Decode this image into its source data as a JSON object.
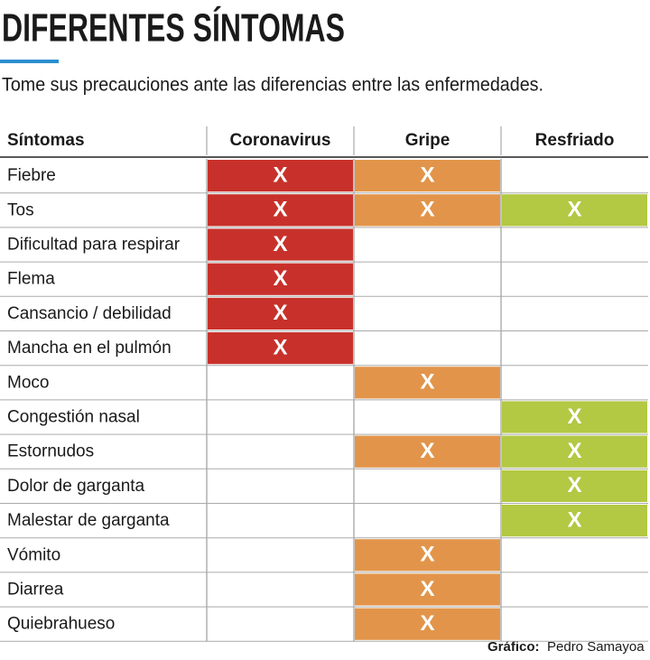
{
  "title": "DIFERENTES SÍNTOMAS",
  "subtitle": "Tome sus precauciones ante las diferencias entre las enfermedades.",
  "table": {
    "headers": [
      "Síntomas",
      "Coronavirus",
      "Gripe",
      "Resfriado"
    ],
    "colors": [
      "#c8312b",
      "#e2954a",
      "#b3c843"
    ],
    "rows": [
      [
        "Fiebre",
        "X",
        "X",
        null
      ],
      [
        "Tos",
        "X",
        "X",
        "X"
      ],
      [
        "Dificultad para respirar",
        "X",
        null,
        null
      ],
      [
        "Flema",
        "X",
        null,
        null
      ],
      [
        "Cansancio / debilidad",
        "X",
        null,
        null
      ],
      [
        "Mancha en el pulmón",
        "X",
        null,
        null
      ],
      [
        "Moco",
        null,
        "X",
        null
      ],
      [
        "Congestión nasal",
        null,
        null,
        "X"
      ],
      [
        "Estornudos",
        null,
        "X",
        "X"
      ],
      [
        "Dolor de garganta",
        null,
        null,
        "X"
      ],
      [
        "Malestar de garganta",
        null,
        null,
        "X"
      ],
      [
        "Vómito",
        null,
        "X",
        null
      ],
      [
        "Diarrea",
        null,
        "X",
        null
      ],
      [
        "Quiebrahueso",
        null,
        "X",
        null
      ]
    ]
  },
  "footer": {
    "label": "Gráfico:",
    "author": "Pedro Samayoa"
  }
}
